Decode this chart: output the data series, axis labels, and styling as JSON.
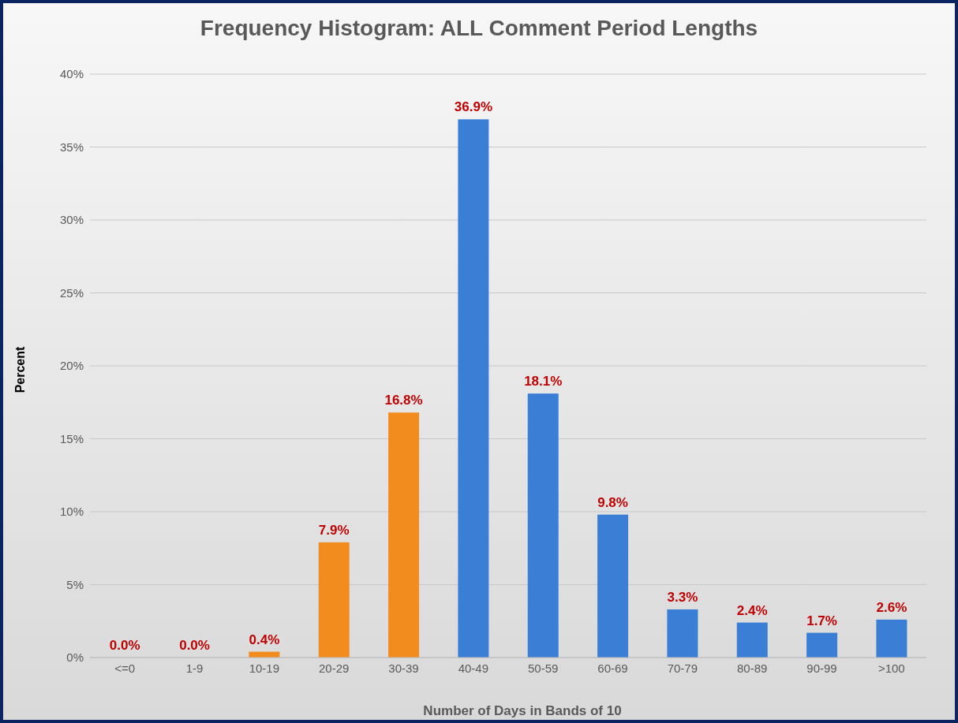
{
  "chart_data": {
    "type": "bar",
    "title": "Frequency Histogram: ALL Comment Period Lengths",
    "xlabel": "Number of Days in Bands of 10",
    "ylabel": "Percent",
    "categories": [
      "<=0",
      "1-9",
      "10-19",
      "20-29",
      "30-39",
      "40-49",
      "50-59",
      "60-69",
      "70-79",
      "80-89",
      "90-99",
      ">100"
    ],
    "values": [
      0,
      0,
      0.4,
      7.9,
      16.8,
      36.9,
      18.1,
      9.8,
      3.3,
      2.4,
      1.7,
      2.6
    ],
    "value_labels": [
      "0.0%",
      "0.0%",
      "0.4%",
      "7.9%",
      "16.8%",
      "36.9%",
      "18.1%",
      "9.8%",
      "3.3%",
      "2.4%",
      "1.7%",
      "2.6%"
    ],
    "colors": [
      "#f28c1e",
      "#f28c1e",
      "#f28c1e",
      "#f28c1e",
      "#f28c1e",
      "#3a7fd5",
      "#3a7fd5",
      "#3a7fd5",
      "#3a7fd5",
      "#3a7fd5",
      "#3a7fd5",
      "#3a7fd5"
    ],
    "ylim": [
      0,
      40
    ],
    "yticks": [
      {
        "value": 0,
        "label": "0%"
      },
      {
        "value": 5,
        "label": "5%"
      },
      {
        "value": 10,
        "label": "10%"
      },
      {
        "value": 15,
        "label": "15%"
      },
      {
        "value": 20,
        "label": "20%"
      },
      {
        "value": 25,
        "label": "25%"
      },
      {
        "value": 30,
        "label": "30%"
      },
      {
        "value": 35,
        "label": "35%"
      },
      {
        "value": 40,
        "label": "40%"
      }
    ],
    "grid": "y"
  }
}
